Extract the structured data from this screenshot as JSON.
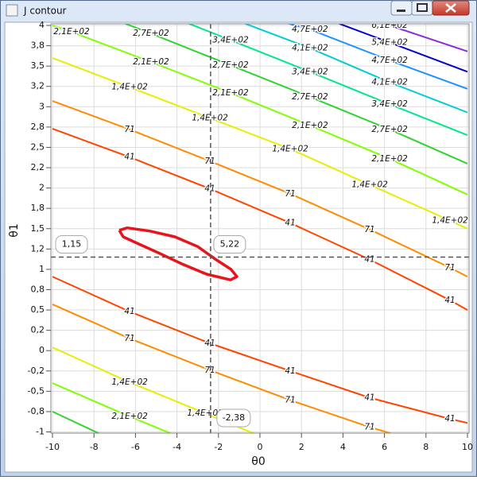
{
  "window_title": "J contour",
  "chart_data": {
    "type": "contour",
    "xlabel": "θ0",
    "ylabel": "θ1",
    "xlim": [
      -10,
      10
    ],
    "ylim": [
      -1,
      4
    ],
    "grid": true,
    "xticks": [
      -10,
      -8,
      -6,
      -4,
      -2,
      0,
      2,
      4,
      6,
      8,
      10
    ],
    "yticks": [
      -1,
      {
        "value": -0.75,
        "label": "-0,8"
      },
      {
        "value": -0.5,
        "label": "-0,5"
      },
      {
        "value": -0.25,
        "label": "-0,2"
      },
      0,
      {
        "value": 0.25,
        "label": "0,2"
      },
      {
        "value": 0.5,
        "label": "0,5"
      },
      {
        "value": 0.75,
        "label": "0,8"
      },
      1,
      {
        "value": 1.25,
        "label": "1,2"
      },
      {
        "value": 1.5,
        "label": "1,5"
      },
      {
        "value": 1.75,
        "label": "1,8"
      },
      2,
      {
        "value": 2.25,
        "label": "2,2"
      },
      {
        "value": 2.5,
        "label": "2,5"
      },
      {
        "value": 2.75,
        "label": "2,8"
      },
      3,
      {
        "value": 3.25,
        "label": "3,2"
      },
      {
        "value": 3.5,
        "label": "3,5"
      },
      {
        "value": 3.75,
        "label": "3,8"
      },
      4
    ],
    "series": [
      {
        "name": "41",
        "color": "#ff4500",
        "x": [
          -10,
          -6.28,
          -2.41,
          1.46,
          5.29,
          9.16,
          10,
          null,
          -10,
          -6.28,
          -2.41,
          1.46,
          5.29,
          9.16,
          10
        ],
        "y": [
          2.73,
          2.38,
          1.99,
          1.57,
          1.12,
          0.62,
          0.5,
          null,
          0.91,
          0.48,
          0.09,
          -0.25,
          -0.58,
          -0.84,
          -0.89
        ],
        "labels": {
          "x": [
            -6.28,
            -2.41,
            1.46,
            5.29,
            9.16,
            -6.28,
            -2.41,
            1.46,
            5.29,
            9.16
          ],
          "y": [
            2.38,
            1.99,
            1.57,
            1.12,
            0.62,
            0.48,
            0.09,
            -0.25,
            -0.58,
            -0.84
          ]
        }
      },
      {
        "name": "71",
        "color": "#ff8c00",
        "x": [
          -10,
          -6.28,
          -2.41,
          1.46,
          5.29,
          9.16,
          10,
          null,
          -10,
          -6.28,
          -2.41,
          1.46,
          5.29,
          10
        ],
        "y": [
          3.07,
          2.72,
          2.33,
          1.93,
          1.49,
          1.02,
          0.91,
          null,
          0.57,
          0.15,
          -0.24,
          -0.61,
          -0.94,
          -1.3
        ],
        "labels": {
          "x": [
            -6.28,
            -2.41,
            1.46,
            5.29,
            9.16,
            -6.28,
            -2.41,
            1.46,
            5.29
          ],
          "y": [
            2.72,
            2.33,
            1.93,
            1.49,
            1.02,
            0.15,
            -0.24,
            -0.61,
            -0.94
          ]
        }
      },
      {
        "name": "1,4E+02",
        "color": "#e6ee00",
        "x": [
          -10,
          -6.28,
          -2.41,
          1.46,
          5.29,
          9.16,
          10,
          null,
          -10,
          -6.28,
          -2.64,
          0
        ],
        "y": [
          3.6,
          3.24,
          2.86,
          2.48,
          2.04,
          1.6,
          1.5,
          null,
          0.04,
          -0.39,
          -0.77,
          -1.05
        ],
        "labels": {
          "x": [
            -6.28,
            -2.41,
            1.46,
            5.29,
            9.16,
            -6.28,
            -2.64
          ],
          "y": [
            3.24,
            2.86,
            2.48,
            2.04,
            1.6,
            -0.39,
            -0.77
          ]
        }
      },
      {
        "name": "2,1E+02",
        "color": "#7fff00",
        "x": [
          -10,
          -9.08,
          -5.25,
          -1.42,
          2.41,
          6.25,
          10,
          null,
          -10,
          -6.28,
          -4
        ],
        "y": [
          4.0,
          3.92,
          3.55,
          3.17,
          2.77,
          2.36,
          1.92,
          null,
          -0.4,
          -0.81,
          -1.05
        ],
        "labels": {
          "x": [
            -9.08,
            -5.25,
            -1.42,
            2.41,
            6.25,
            -6.28
          ],
          "y": [
            3.92,
            3.55,
            3.17,
            2.77,
            2.36,
            -0.81
          ]
        }
      },
      {
        "name": "2,7E+02",
        "color": "#32d232",
        "x": [
          -8,
          -5.25,
          -1.42,
          2.41,
          6.25,
          10,
          null,
          -10,
          -7.5
        ],
        "y": [
          4.17,
          3.9,
          3.51,
          3.12,
          2.72,
          2.3,
          null,
          -0.75,
          -1.05
        ],
        "labels": {
          "x": [
            -5.25,
            -1.42,
            2.41,
            6.25
          ],
          "y": [
            3.9,
            3.51,
            3.12,
            2.72
          ]
        }
      },
      {
        "name": "3,4E+02",
        "color": "#00e68c",
        "x": [
          -4,
          -1.42,
          2.41,
          6.25,
          10
        ],
        "y": [
          4.08,
          3.82,
          3.43,
          3.03,
          2.65
        ],
        "labels": {
          "x": [
            -1.42,
            2.41,
            6.25
          ],
          "y": [
            3.82,
            3.43,
            3.03
          ]
        }
      },
      {
        "name": "4,1E+02",
        "color": "#00cdd2",
        "x": [
          -1,
          2.41,
          6.25,
          10
        ],
        "y": [
          4.05,
          3.72,
          3.3,
          2.93
        ],
        "labels": {
          "x": [
            2.41,
            6.25
          ],
          "y": [
            3.72,
            3.3
          ]
        }
      },
      {
        "name": "4,7E+02",
        "color": "#1e90ff",
        "x": [
          1,
          2.41,
          6.25,
          10
        ],
        "y": [
          4.05,
          3.95,
          3.57,
          3.22
        ],
        "labels": {
          "x": [
            2.41,
            6.25
          ],
          "y": [
            3.95,
            3.57
          ]
        }
      },
      {
        "name": "5,4E+02",
        "color": "#0000d0",
        "x": [
          3,
          6.25,
          10
        ],
        "y": [
          4.1,
          3.79,
          3.43
        ],
        "labels": {
          "x": [
            6.25
          ],
          "y": [
            3.79
          ]
        }
      },
      {
        "name": "6,1E+02",
        "color": "#8a2be2",
        "x": [
          5,
          6.25,
          10
        ],
        "y": [
          4.12,
          4.0,
          3.68
        ],
        "labels": {
          "x": [
            6.25
          ],
          "y": [
            4.0
          ]
        }
      }
    ],
    "min_contour": {
      "color": "#e8141b",
      "x": [
        -6.78,
        -6.4,
        -5.3,
        -4.1,
        -3.0,
        -2.18,
        -1.4,
        -1.11,
        -1.42,
        -2.57,
        -3.7,
        -4.87,
        -6.0,
        -6.59,
        -6.78
      ],
      "y": [
        1.48,
        1.51,
        1.47,
        1.4,
        1.28,
        1.13,
        1.0,
        0.91,
        0.87,
        0.94,
        1.06,
        1.2,
        1.33,
        1.4,
        1.48
      ]
    },
    "crosshair": {
      "x": -2.38,
      "y": 1.15,
      "z": 5.22,
      "value_labels": {
        "x": "-2,38",
        "y": "1,15",
        "z": "5,22"
      }
    }
  }
}
